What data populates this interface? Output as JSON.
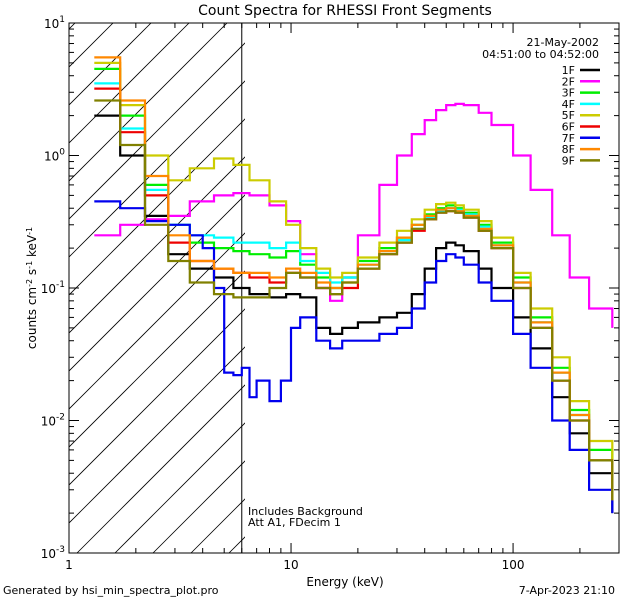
{
  "chart_data": {
    "type": "line",
    "title": "Count Spectra for RHESSI Front Segments",
    "date": "21-May-2002",
    "time_range": "04:51:00 to 04:52:00",
    "xlabel": "Energy (keV)",
    "ylabel": "counts cm-2 s-1 keV-1",
    "xscale": "log",
    "yscale": "log",
    "xlim": [
      1,
      300
    ],
    "ylim": [
      0.001,
      10
    ],
    "x_tick_labels": [
      {
        "value": 1,
        "label": "1"
      },
      {
        "value": 10,
        "label": "10"
      },
      {
        "value": 100,
        "label": "100"
      }
    ],
    "y_tick_labels": [
      {
        "value": 10,
        "label": "10",
        "exp": "1"
      },
      {
        "value": 1,
        "label": "10",
        "exp": "0"
      },
      {
        "value": 0.1,
        "label": "10",
        "exp": "-1"
      },
      {
        "value": 0.01,
        "label": "10",
        "exp": "-2"
      },
      {
        "value": 0.001,
        "label": "10",
        "exp": "-3"
      }
    ],
    "hatched_region_max_energy": 6,
    "annotations": [
      "Includes Background",
      "Att A1, FDecim 1"
    ],
    "footer_left": "Generated by hsi_min_spectra_plot.pro",
    "footer_right": "7-Apr-2023 21:10",
    "series": [
      {
        "name": "1F",
        "color": "#000000",
        "x": [
          1.3,
          1.7,
          2.2,
          2.8,
          3.5,
          4.5,
          5.5,
          6.5,
          8,
          9.5,
          11,
          13,
          15,
          17,
          20,
          25,
          30,
          35,
          40,
          45,
          50,
          55,
          60,
          70,
          80,
          100,
          120,
          150,
          180,
          220,
          280
        ],
        "y": [
          2.0,
          1.0,
          0.35,
          0.18,
          0.14,
          0.12,
          0.1,
          0.09,
          0.085,
          0.09,
          0.085,
          0.05,
          0.045,
          0.05,
          0.055,
          0.06,
          0.065,
          0.09,
          0.14,
          0.2,
          0.22,
          0.21,
          0.19,
          0.14,
          0.1,
          0.06,
          0.035,
          0.015,
          0.008,
          0.004,
          0.002
        ]
      },
      {
        "name": "2F",
        "color": "#ff00ff",
        "x": [
          1.3,
          1.7,
          2.2,
          2.8,
          3.5,
          4.5,
          5.5,
          6.5,
          8,
          9.5,
          11,
          13,
          15,
          17,
          20,
          25,
          30,
          35,
          40,
          45,
          50,
          55,
          60,
          70,
          80,
          100,
          120,
          150,
          180,
          220,
          280
        ],
        "y": [
          0.25,
          0.3,
          0.33,
          0.35,
          0.45,
          0.5,
          0.52,
          0.5,
          0.42,
          0.32,
          0.18,
          0.1,
          0.08,
          0.12,
          0.25,
          0.6,
          1.0,
          1.45,
          1.85,
          2.2,
          2.4,
          2.45,
          2.4,
          2.1,
          1.7,
          1.0,
          0.55,
          0.25,
          0.12,
          0.07,
          0.05
        ]
      },
      {
        "name": "3F",
        "color": "#00ee00",
        "x": [
          1.3,
          1.7,
          2.2,
          2.8,
          3.5,
          4.5,
          5.5,
          6.5,
          8,
          9.5,
          11,
          13,
          15,
          17,
          20,
          25,
          30,
          35,
          40,
          45,
          50,
          55,
          60,
          70,
          80,
          100,
          120,
          150,
          180,
          220,
          280
        ],
        "y": [
          4.5,
          2.0,
          0.6,
          0.3,
          0.22,
          0.2,
          0.19,
          0.18,
          0.17,
          0.19,
          0.15,
          0.12,
          0.1,
          0.12,
          0.16,
          0.2,
          0.24,
          0.3,
          0.36,
          0.4,
          0.42,
          0.4,
          0.37,
          0.3,
          0.22,
          0.12,
          0.06,
          0.025,
          0.012,
          0.006,
          0.003
        ]
      },
      {
        "name": "4F",
        "color": "#00ffff",
        "x": [
          1.3,
          1.7,
          2.2,
          2.8,
          3.5,
          4.5,
          5.5,
          6.5,
          8,
          9.5,
          11,
          13,
          15,
          17,
          20,
          25,
          30,
          35,
          40,
          45,
          50,
          55,
          60,
          70,
          80,
          100,
          120,
          150,
          180,
          220,
          280
        ],
        "y": [
          3.5,
          1.6,
          0.55,
          0.3,
          0.25,
          0.24,
          0.22,
          0.22,
          0.2,
          0.22,
          0.16,
          0.13,
          0.11,
          0.12,
          0.15,
          0.19,
          0.23,
          0.28,
          0.34,
          0.38,
          0.4,
          0.39,
          0.36,
          0.29,
          0.21,
          0.11,
          0.055,
          0.023,
          0.011,
          0.005,
          0.0025
        ]
      },
      {
        "name": "5F",
        "color": "#cccc00",
        "x": [
          1.3,
          1.7,
          2.2,
          2.8,
          3.5,
          4.5,
          5.5,
          6.5,
          8,
          9.5,
          11,
          13,
          15,
          17,
          20,
          25,
          30,
          35,
          40,
          45,
          50,
          55,
          60,
          70,
          80,
          100,
          120,
          150,
          180,
          220,
          280
        ],
        "y": [
          5.0,
          2.4,
          1.0,
          0.65,
          0.8,
          0.95,
          0.85,
          0.65,
          0.45,
          0.3,
          0.2,
          0.14,
          0.12,
          0.13,
          0.17,
          0.22,
          0.27,
          0.33,
          0.39,
          0.43,
          0.44,
          0.42,
          0.39,
          0.32,
          0.24,
          0.13,
          0.07,
          0.03,
          0.014,
          0.007,
          0.0035
        ]
      },
      {
        "name": "6F",
        "color": "#ee0000",
        "x": [
          1.3,
          1.7,
          2.2,
          2.8,
          3.5,
          4.5,
          5.5,
          6.5,
          8,
          9.5,
          11,
          13,
          15,
          17,
          20,
          25,
          30,
          35,
          40,
          45,
          50,
          55,
          60,
          70,
          80,
          100,
          120,
          150,
          180,
          220,
          280
        ],
        "y": [
          3.2,
          1.5,
          0.5,
          0.22,
          0.16,
          0.14,
          0.13,
          0.12,
          0.11,
          0.13,
          0.12,
          0.1,
          0.09,
          0.1,
          0.14,
          0.18,
          0.22,
          0.27,
          0.33,
          0.37,
          0.38,
          0.37,
          0.34,
          0.27,
          0.2,
          0.1,
          0.05,
          0.02,
          0.01,
          0.005,
          0.0025
        ]
      },
      {
        "name": "7F",
        "color": "#0000ee",
        "x": [
          1.3,
          1.7,
          2.2,
          2.8,
          3.5,
          4.0,
          4.5,
          5.0,
          5.5,
          6.0,
          6.5,
          7.0,
          8.0,
          9.0,
          10,
          11,
          13,
          15,
          17,
          20,
          25,
          30,
          35,
          40,
          45,
          50,
          55,
          60,
          70,
          80,
          100,
          120,
          150,
          180,
          220,
          280
        ],
        "y": [
          0.45,
          0.4,
          0.32,
          0.3,
          0.25,
          0.2,
          0.1,
          0.023,
          0.022,
          0.025,
          0.015,
          0.02,
          0.014,
          0.02,
          0.05,
          0.06,
          0.04,
          0.035,
          0.04,
          0.04,
          0.045,
          0.05,
          0.07,
          0.11,
          0.16,
          0.18,
          0.17,
          0.15,
          0.11,
          0.08,
          0.045,
          0.025,
          0.01,
          0.006,
          0.003,
          0.002
        ]
      },
      {
        "name": "8F",
        "color": "#ff8800",
        "x": [
          1.3,
          1.7,
          2.2,
          2.8,
          3.5,
          4.5,
          5.5,
          6.5,
          8,
          9.5,
          11,
          13,
          15,
          17,
          20,
          25,
          30,
          35,
          40,
          45,
          50,
          55,
          60,
          70,
          80,
          100,
          120,
          150,
          180,
          220,
          280
        ],
        "y": [
          5.5,
          2.6,
          0.7,
          0.25,
          0.16,
          0.14,
          0.13,
          0.13,
          0.12,
          0.14,
          0.13,
          0.11,
          0.1,
          0.11,
          0.15,
          0.19,
          0.24,
          0.3,
          0.35,
          0.39,
          0.4,
          0.38,
          0.35,
          0.28,
          0.21,
          0.11,
          0.055,
          0.023,
          0.011,
          0.005,
          0.0025
        ]
      },
      {
        "name": "9F",
        "color": "#808000",
        "x": [
          1.3,
          1.7,
          2.2,
          2.8,
          3.5,
          4.5,
          5.5,
          6.5,
          8,
          9.5,
          11,
          13,
          15,
          17,
          20,
          25,
          30,
          35,
          40,
          45,
          50,
          55,
          60,
          70,
          80,
          100,
          120,
          150,
          180,
          220,
          280
        ],
        "y": [
          2.6,
          1.2,
          0.3,
          0.16,
          0.11,
          0.09,
          0.085,
          0.085,
          0.1,
          0.13,
          0.12,
          0.1,
          0.09,
          0.11,
          0.14,
          0.18,
          0.22,
          0.28,
          0.33,
          0.37,
          0.38,
          0.37,
          0.34,
          0.27,
          0.2,
          0.1,
          0.05,
          0.02,
          0.01,
          0.005,
          0.0025
        ]
      }
    ]
  }
}
